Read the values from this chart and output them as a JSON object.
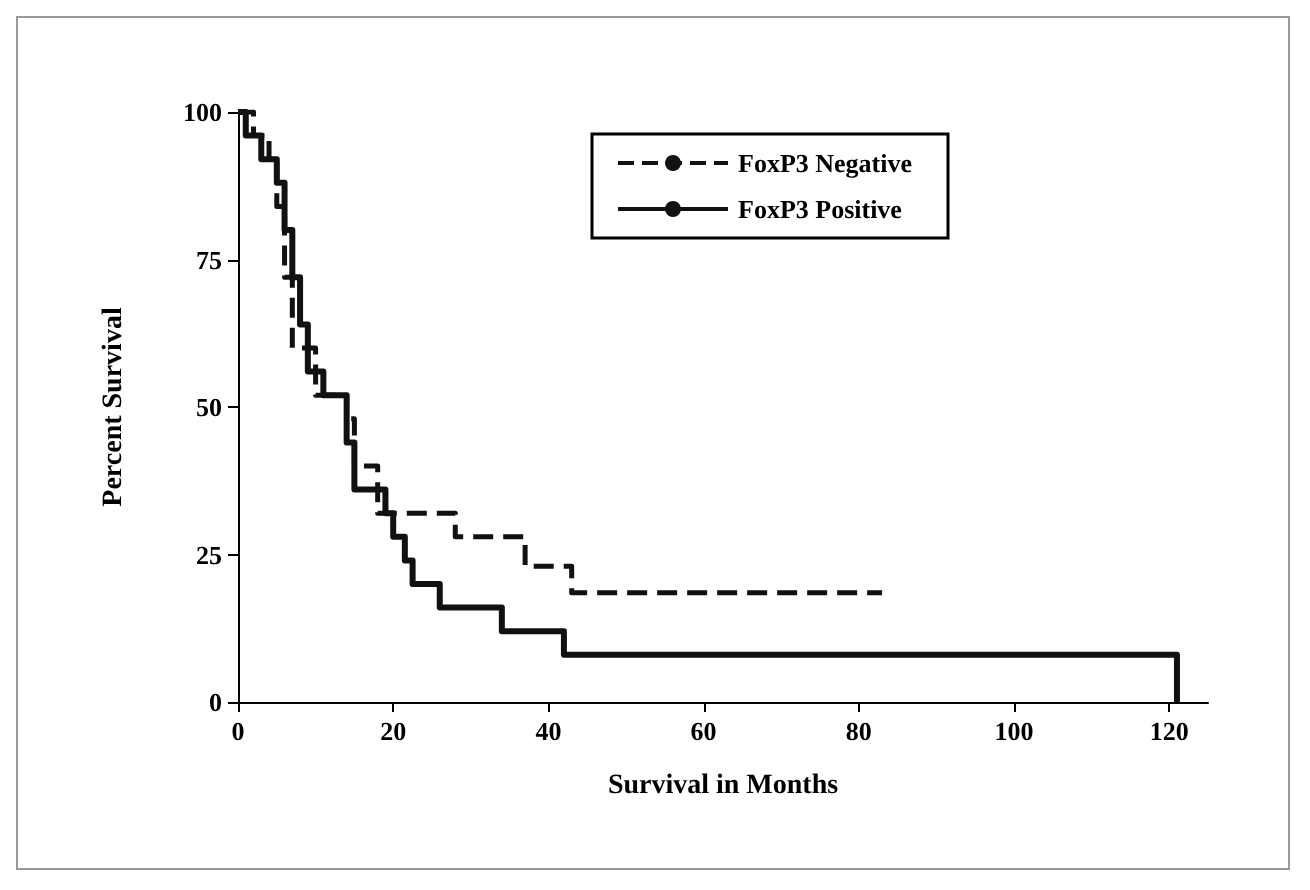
{
  "chart_data": {
    "type": "step",
    "xlabel": "Survival in Months",
    "ylabel": "Percent Survival",
    "xlim": [
      0,
      125
    ],
    "xticks": [
      0,
      20,
      40,
      60,
      80,
      100,
      120
    ],
    "ylim": [
      0,
      100
    ],
    "yticks": [
      0,
      25,
      50,
      75,
      100
    ],
    "grid": false,
    "legend": "top right",
    "marker": "none",
    "series": [
      {
        "name": "FoxP3 Negative",
        "color": "#111111",
        "line_style": "dashed",
        "x": [
          0,
          2,
          4,
          5,
          6,
          7,
          10,
          14,
          15,
          18,
          28,
          37,
          43,
          83
        ],
        "values": [
          100,
          96,
          92,
          84,
          72,
          60,
          52,
          48,
          40,
          32,
          28,
          23,
          18.5,
          18.5
        ]
      },
      {
        "name": "FoxP3 Positive",
        "color": "#111111",
        "line_style": "solid",
        "x": [
          0,
          1,
          3,
          5,
          6,
          7,
          8,
          9,
          11,
          14,
          15,
          19,
          20,
          21.5,
          22.5,
          26,
          34,
          42,
          121
        ],
        "values": [
          100,
          96,
          92,
          88,
          80,
          72,
          64,
          56,
          52,
          44,
          36,
          32,
          28,
          24,
          20,
          16,
          12,
          8,
          0
        ]
      }
    ]
  }
}
